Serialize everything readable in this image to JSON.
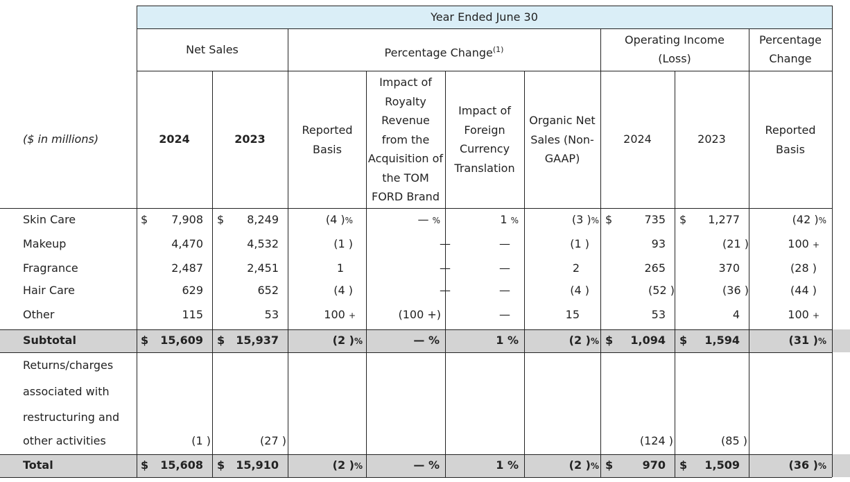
{
  "header": {
    "period": "Year Ended June 30",
    "net_sales": "Net Sales",
    "percentage_change": "Percentage Change",
    "footnote_marker": "(1)",
    "operating_income": "Operating Income (Loss)",
    "percentage_change_right": "Percentage Change",
    "units": "($ in millions)",
    "col_2024a": "2024",
    "col_2023a": "2023",
    "col_reported": "Reported Basis",
    "col_royalty": "Impact of Royalty Revenue from the Acquisition of the TOM FORD Brand",
    "col_fx": "Impact of Foreign Currency Translation",
    "col_organic": "Organic Net Sales (Non-GAAP)",
    "col_2024b": "2024",
    "col_2023b": "2023",
    "col_reported_right": "Reported Basis"
  },
  "symbols": {
    "dollar": "$",
    "pct": "%",
    "plus": "+",
    "dash": "—",
    "close_paren": ")"
  },
  "rows": {
    "skin_care": {
      "label": "Skin Care",
      "ns2024": "7,908",
      "ns2023": "8,249",
      "reported": "(4",
      "royalty": "—",
      "fx": "1",
      "organic": "(3",
      "oi2024": "735",
      "oi2023": "1,277",
      "change": "(42"
    },
    "makeup": {
      "label": "Makeup",
      "ns2024": "4,470",
      "ns2023": "4,532",
      "reported": "(1",
      "royalty": "—",
      "fx": "—",
      "organic": "(1",
      "oi2024": "93",
      "oi2023": "(21",
      "change": "100"
    },
    "fragrance": {
      "label": "Fragrance",
      "ns2024": "2,487",
      "ns2023": "2,451",
      "reported": "1",
      "royalty": "—",
      "fx": "—",
      "organic": "2",
      "oi2024": "265",
      "oi2023": "370",
      "change": "(28"
    },
    "hair_care": {
      "label": "Hair Care",
      "ns2024": "629",
      "ns2023": "652",
      "reported": "(4",
      "royalty": "—",
      "fx": "—",
      "organic": "(4",
      "oi2024": "(52",
      "oi2023": "(36",
      "change": "(44"
    },
    "other": {
      "label": "Other",
      "ns2024": "115",
      "ns2023": "53",
      "reported": "100",
      "royalty": "(100 +)",
      "fx": "—",
      "organic": "15",
      "oi2024": "53",
      "oi2023": "4",
      "change": "100"
    },
    "subtotal": {
      "label": "Subtotal",
      "ns2024": "15,609",
      "ns2023": "15,937",
      "reported": "(2",
      "royalty": "—",
      "fx": "1",
      "organic": "(2",
      "oi2024": "1,094",
      "oi2023": "1,594",
      "change": "(31"
    },
    "returns": {
      "label": "Returns/charges associated with restructuring and other activities",
      "line1": "Returns/charges",
      "line2": "associated with",
      "line3": "restructuring and",
      "line4": "other activities",
      "ns2024": "(1",
      "ns2023": "(27",
      "oi2024": "(124",
      "oi2023": "(85"
    },
    "total": {
      "label": "Total",
      "ns2024": "15,608",
      "ns2023": "15,910",
      "reported": "(2",
      "royalty": "—",
      "fx": "1",
      "organic": "(2",
      "oi2024": "970",
      "oi2023": "1,509",
      "change": "(36"
    }
  }
}
